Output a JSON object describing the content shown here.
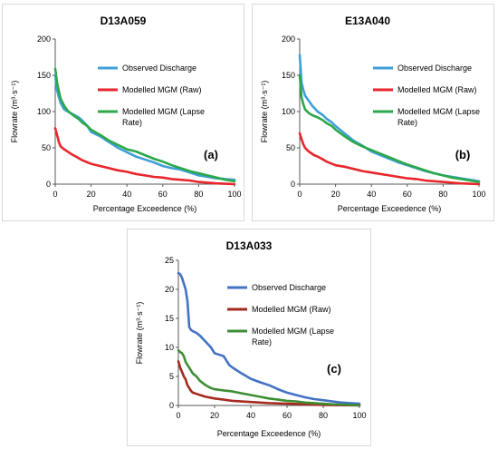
{
  "colors": {
    "observed": "#3f9fd6",
    "raw": "#e8262b",
    "lapse": "#2ca84a",
    "observed_c": "#4472c4",
    "raw_c": "#a52a1e",
    "lapse_c": "#3e8e35"
  },
  "chart_data": [
    {
      "type": "line",
      "title": "D13A059",
      "label": "(a)",
      "xlabel": "Percentage Exceedence (%)",
      "ylabel": "Flowrate (m³·s⁻¹)",
      "xlim": [
        0,
        100
      ],
      "ylim": [
        0,
        200
      ],
      "xticks": [
        0,
        20,
        40,
        60,
        80,
        100
      ],
      "yticks": [
        0,
        50,
        100,
        150,
        200
      ],
      "legend_position": "top-right",
      "series": [
        {
          "name": "Observed Discharge",
          "color": "#3f9fd6",
          "x": [
            0,
            1,
            2,
            3,
            5,
            7,
            10,
            13,
            15,
            18,
            20,
            25,
            30,
            35,
            40,
            45,
            50,
            55,
            60,
            65,
            70,
            75,
            80,
            85,
            90,
            95,
            100
          ],
          "y": [
            150,
            130,
            120,
            112,
            103,
            100,
            96,
            92,
            88,
            80,
            72,
            66,
            58,
            50,
            44,
            38,
            34,
            30,
            25,
            22,
            20,
            16,
            12,
            10,
            8,
            7,
            6
          ]
        },
        {
          "name": "Modelled MGM (Raw)",
          "color": "#e8262b",
          "x": [
            0,
            1,
            2,
            3,
            5,
            8,
            10,
            13,
            15,
            18,
            20,
            25,
            30,
            35,
            40,
            45,
            50,
            55,
            60,
            65,
            70,
            75,
            80,
            85,
            90,
            95,
            100
          ],
          "y": [
            77,
            68,
            58,
            52,
            48,
            43,
            40,
            36,
            33,
            30,
            28,
            25,
            22,
            19,
            17,
            14,
            12,
            10,
            9,
            7,
            6,
            5,
            3,
            2,
            1,
            0.5,
            0
          ]
        },
        {
          "name": "Modelled MGM (Lapse Rate)",
          "color": "#2ca84a",
          "x": [
            0,
            1,
            2,
            3,
            5,
            7,
            10,
            13,
            15,
            18,
            20,
            25,
            30,
            35,
            40,
            45,
            50,
            55,
            60,
            65,
            70,
            75,
            80,
            85,
            90,
            95,
            100
          ],
          "y": [
            159,
            140,
            128,
            118,
            108,
            101,
            95,
            90,
            85,
            80,
            75,
            68,
            60,
            54,
            48,
            45,
            40,
            35,
            31,
            26,
            22,
            18,
            15,
            12,
            9,
            6,
            4
          ]
        }
      ]
    },
    {
      "type": "line",
      "title": "E13A040",
      "label": "(b)",
      "xlabel": "Percentage Exceedence (%)",
      "ylabel": "Flowrate (m³·s⁻¹)",
      "xlim": [
        0,
        100
      ],
      "ylim": [
        0,
        200
      ],
      "xticks": [
        0,
        20,
        40,
        60,
        80,
        100
      ],
      "yticks": [
        0,
        50,
        100,
        150,
        200
      ],
      "legend_position": "top-right",
      "series": [
        {
          "name": "Observed Discharge",
          "color": "#3f9fd6",
          "x": [
            0,
            0.5,
            1,
            2,
            3,
            5,
            7,
            10,
            13,
            15,
            18,
            20,
            25,
            30,
            35,
            40,
            45,
            50,
            55,
            60,
            65,
            70,
            75,
            80,
            85,
            90,
            95,
            100
          ],
          "y": [
            178,
            160,
            140,
            130,
            122,
            115,
            108,
            100,
            95,
            90,
            85,
            80,
            70,
            60,
            53,
            45,
            40,
            35,
            30,
            26,
            22,
            18,
            15,
            12,
            10,
            8,
            6,
            4
          ]
        },
        {
          "name": "Modelled MGM (Raw)",
          "color": "#e8262b",
          "x": [
            0,
            1,
            2,
            3,
            5,
            8,
            10,
            13,
            15,
            18,
            20,
            25,
            30,
            35,
            40,
            45,
            50,
            55,
            60,
            65,
            70,
            75,
            80,
            85,
            90,
            95,
            100
          ],
          "y": [
            70,
            62,
            55,
            50,
            45,
            40,
            38,
            34,
            31,
            28,
            26,
            24,
            21,
            18,
            16,
            14,
            12,
            10,
            8,
            7,
            5,
            4,
            3,
            2,
            1,
            0.5,
            0
          ]
        },
        {
          "name": "Modelled MGM (Lapse Rate)",
          "color": "#2ca84a",
          "x": [
            0,
            0.5,
            1,
            2,
            3,
            5,
            7,
            10,
            13,
            15,
            18,
            20,
            25,
            30,
            35,
            40,
            45,
            50,
            55,
            60,
            65,
            70,
            75,
            80,
            85,
            90,
            95,
            100
          ],
          "y": [
            150,
            135,
            120,
            110,
            103,
            98,
            95,
            92,
            88,
            84,
            80,
            75,
            66,
            58,
            52,
            47,
            42,
            37,
            32,
            27,
            23,
            19,
            15,
            12,
            9,
            7,
            5,
            3
          ]
        }
      ]
    },
    {
      "type": "line",
      "title": "D13A033",
      "label": "(c)",
      "xlabel": "Percentage Exceedence (%)",
      "ylabel": "Flowrate (m³·s⁻¹)",
      "xlim": [
        0,
        100
      ],
      "ylim": [
        0,
        25
      ],
      "xticks": [
        0,
        20,
        40,
        60,
        80,
        100
      ],
      "yticks": [
        0,
        5,
        10,
        15,
        20,
        25
      ],
      "legend_position": "top-right",
      "series": [
        {
          "name": "Observed Discharge",
          "color": "#4472c4",
          "x": [
            0,
            1,
            2,
            3,
            4,
            5,
            6,
            7,
            8,
            10,
            12,
            15,
            18,
            20,
            22,
            25,
            28,
            30,
            35,
            40,
            45,
            50,
            55,
            60,
            65,
            70,
            75,
            80,
            85,
            90,
            95,
            100
          ],
          "y": [
            22.8,
            22.6,
            22,
            21,
            20,
            18,
            13.5,
            13,
            12.8,
            12.5,
            12,
            11,
            10,
            9,
            8.8,
            8.5,
            7,
            6.5,
            5.5,
            4.6,
            4,
            3.5,
            2.8,
            2.2,
            1.8,
            1.4,
            1.1,
            0.9,
            0.7,
            0.5,
            0.4,
            0.3
          ]
        },
        {
          "name": "Modelled MGM (Raw)",
          "color": "#a52a1e",
          "x": [
            0,
            1,
            2,
            3,
            4,
            5,
            6,
            7,
            8,
            10,
            12,
            15,
            20,
            25,
            30,
            40,
            50,
            60,
            70,
            80,
            90,
            100
          ],
          "y": [
            7.6,
            6.5,
            5.8,
            5,
            4.5,
            3.5,
            3,
            2.5,
            2.2,
            2,
            1.8,
            1.5,
            1.2,
            1.0,
            0.8,
            0.6,
            0.4,
            0.3,
            0.2,
            0.1,
            0.05,
            0
          ]
        },
        {
          "name": "Modelled MGM (Lapse Rate)",
          "color": "#3e8e35",
          "x": [
            0,
            1,
            2,
            3,
            4,
            5,
            7,
            8,
            10,
            12,
            15,
            18,
            20,
            25,
            30,
            35,
            40,
            45,
            50,
            55,
            60,
            65,
            70,
            75,
            80,
            85,
            90,
            95,
            100
          ],
          "y": [
            9.5,
            9.2,
            9,
            8.5,
            7.5,
            7,
            6,
            5.5,
            5,
            4.2,
            3.5,
            3,
            2.8,
            2.6,
            2.4,
            2.1,
            1.8,
            1.5,
            1.2,
            1.0,
            0.8,
            0.7,
            0.5,
            0.4,
            0.3,
            0.2,
            0.15,
            0.1,
            0.05
          ]
        }
      ]
    }
  ]
}
